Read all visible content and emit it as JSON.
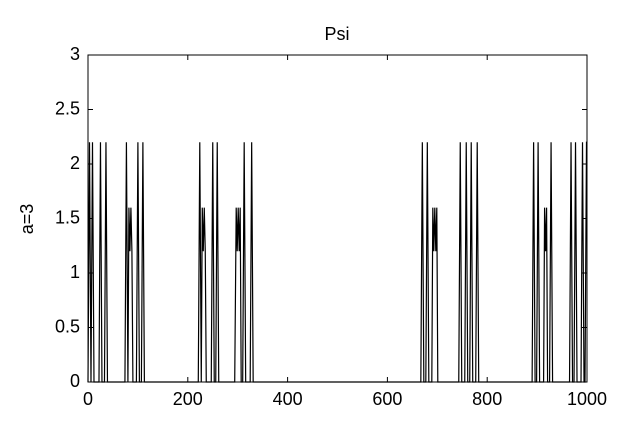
{
  "chart_data": {
    "type": "line",
    "title": "Psi",
    "y_label": "a=3",
    "x": [
      0,
      3,
      6,
      9,
      12,
      22,
      25,
      28,
      33,
      36,
      39,
      74,
      77,
      80,
      82,
      84,
      86,
      88,
      90,
      97,
      100,
      103,
      107,
      110,
      113,
      221,
      224,
      227,
      229,
      231,
      233,
      235,
      237,
      247,
      250,
      253,
      256,
      259,
      262,
      294,
      297,
      299,
      301,
      303,
      305,
      307,
      310,
      313,
      316,
      325,
      328,
      331,
      667,
      670,
      673,
      677,
      680,
      683,
      689,
      691,
      693,
      695,
      697,
      699,
      701,
      743,
      746,
      749,
      755,
      758,
      761,
      765,
      768,
      771,
      777,
      780,
      783,
      890,
      893,
      896,
      899,
      902,
      905,
      913,
      915,
      917,
      919,
      921,
      925,
      928,
      931,
      965,
      968,
      971,
      974,
      977,
      980,
      988,
      991,
      994,
      996,
      999,
      1000
    ],
    "series": [
      {
        "color": "#000000",
        "values": [
          0,
          2.2,
          0,
          2.2,
          0,
          0,
          2.2,
          0,
          0,
          2.2,
          0,
          0,
          2.2,
          0,
          1.6,
          1.2,
          1.6,
          1.2,
          0,
          0,
          2.2,
          0,
          0,
          2.2,
          0,
          0,
          2.2,
          0,
          1.6,
          1.2,
          1.6,
          1.2,
          0,
          0,
          2.2,
          0,
          0,
          2.2,
          0,
          0,
          1.6,
          1.2,
          1.6,
          1.2,
          1.6,
          0,
          0,
          2.2,
          0,
          0,
          2.2,
          0,
          0,
          2.2,
          0,
          0,
          2.2,
          0,
          0,
          1.6,
          1.2,
          1.6,
          1.2,
          1.6,
          0,
          0,
          2.2,
          0,
          0,
          2.2,
          0,
          0,
          2.2,
          0,
          0,
          2.2,
          0,
          0,
          2.2,
          0,
          0,
          2.2,
          0,
          0,
          1.6,
          1.2,
          1.6,
          0,
          0,
          2.2,
          0,
          0,
          2.2,
          0,
          0,
          2.2,
          0,
          0,
          2.2,
          0,
          0,
          2.2,
          2.2
        ]
      }
    ],
    "xlim": [
      0,
      1000
    ],
    "xticks": [
      0,
      200,
      400,
      600,
      800,
      1000
    ],
    "ylim": [
      0,
      3
    ],
    "yticks": [
      0,
      0.5,
      1,
      1.5,
      2,
      2.5,
      3
    ]
  }
}
